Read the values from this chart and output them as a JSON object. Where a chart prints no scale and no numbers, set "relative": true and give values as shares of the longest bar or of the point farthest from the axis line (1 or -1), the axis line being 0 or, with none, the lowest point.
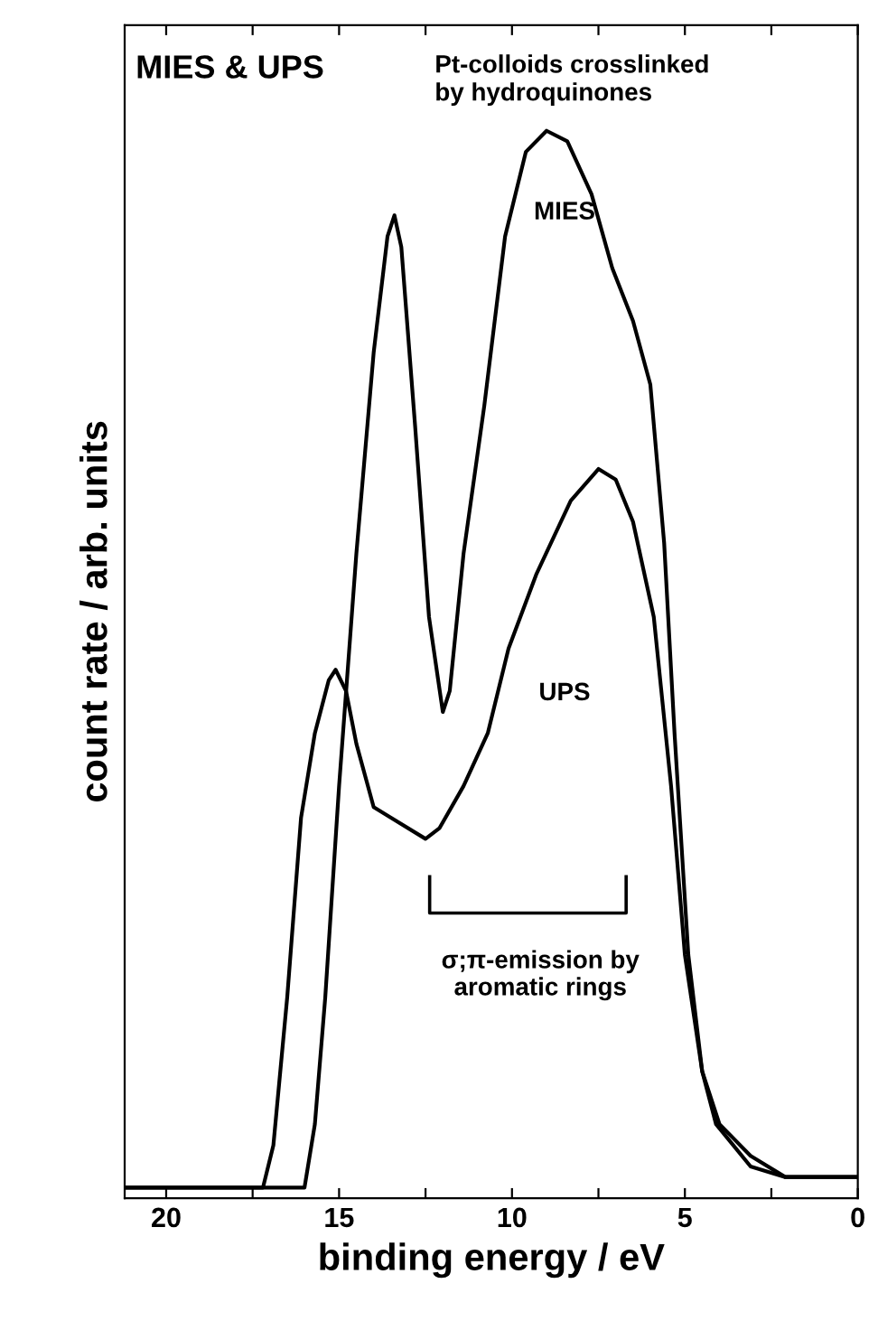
{
  "chart_data": {
    "type": "line",
    "title": "MIES & UPS",
    "subtitle": "Pt-colloids crosslinked\nby hydroquinones",
    "xlabel": "binding energy / eV",
    "ylabel": "count rate / arb. units",
    "relative": true,
    "xlim": [
      21.2,
      0
    ],
    "xticks": [
      20,
      {
        "value": 17.5,
        "label": null
      },
      15,
      {
        "value": 12.5,
        "label": null
      },
      10,
      {
        "value": 7.5,
        "label": null
      },
      5,
      {
        "value": 2.5,
        "label": null
      },
      0
    ],
    "grid": false,
    "marker": "none",
    "line_style": "solid",
    "annotations": [
      "σ;π-emission by\naromatic rings"
    ],
    "series": [
      {
        "name": "MIES",
        "color": "#000000",
        "x": [
          21.2,
          16.0,
          15.7,
          15.4,
          15.0,
          14.5,
          14.0,
          13.6,
          13.4,
          13.2,
          12.8,
          12.4,
          12.0,
          11.8,
          11.4,
          10.8,
          10.2,
          9.6,
          9.0,
          8.4,
          7.7,
          7.1,
          6.5,
          6.0,
          5.6,
          5.3,
          4.9,
          4.5,
          4.0,
          3.1,
          2.1,
          0
        ],
        "values": [
          0,
          0,
          0.06,
          0.18,
          0.38,
          0.6,
          0.79,
          0.9,
          0.92,
          0.89,
          0.72,
          0.54,
          0.45,
          0.47,
          0.6,
          0.74,
          0.9,
          0.98,
          1.0,
          0.99,
          0.94,
          0.87,
          0.82,
          0.76,
          0.61,
          0.43,
          0.22,
          0.11,
          0.06,
          0.03,
          0.01,
          0.01
        ]
      },
      {
        "name": "UPS",
        "color": "#000000",
        "x": [
          21.2,
          17.2,
          16.9,
          16.5,
          16.1,
          15.7,
          15.3,
          15.1,
          14.8,
          14.5,
          14.0,
          13.5,
          12.5,
          12.1,
          11.4,
          10.7,
          10.1,
          9.3,
          8.3,
          7.5,
          7.0,
          6.5,
          5.9,
          5.4,
          5.0,
          4.5,
          4.1,
          3.1,
          2.1,
          0
        ],
        "values": [
          0,
          0,
          0.04,
          0.18,
          0.35,
          0.43,
          0.48,
          0.49,
          0.47,
          0.42,
          0.36,
          0.35,
          0.33,
          0.34,
          0.38,
          0.43,
          0.51,
          0.58,
          0.65,
          0.68,
          0.67,
          0.63,
          0.54,
          0.38,
          0.22,
          0.11,
          0.06,
          0.02,
          0.01,
          0.01
        ]
      }
    ]
  }
}
